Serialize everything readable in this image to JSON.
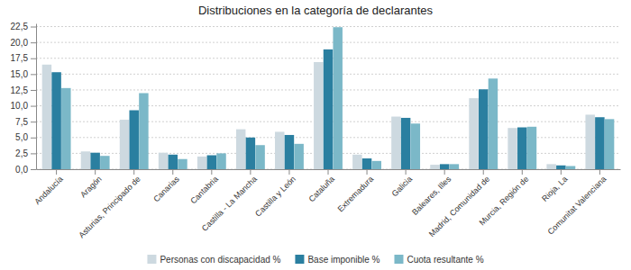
{
  "chart_data": {
    "type": "bar",
    "title": "Distribuciones en la categoría de declarantes",
    "categories": [
      "Andalucía",
      "Aragón",
      "Asturias, Principado de",
      "Canarias",
      "Cantabria",
      "Castilla - La Mancha",
      "Castilla y León",
      "Cataluña",
      "Extremadura",
      "Galicia",
      "Baleares, Illes",
      "Madrid, Comunidad de",
      "Murcia, Región de",
      "Rioja, La",
      "Comunitat Valenciana"
    ],
    "series": [
      {
        "name": "Personas con discapacidad %",
        "color": "#cdd9e0",
        "values": [
          16.5,
          2.8,
          7.8,
          2.6,
          2.0,
          6.3,
          5.9,
          16.9,
          2.3,
          8.3,
          0.7,
          11.2,
          6.5,
          0.8,
          8.6
        ]
      },
      {
        "name": "Base imponible %",
        "color": "#2a7fa0",
        "values": [
          15.3,
          2.6,
          9.3,
          2.3,
          2.2,
          5.0,
          5.4,
          18.9,
          1.7,
          8.1,
          0.8,
          12.6,
          6.6,
          0.6,
          8.2
        ]
      },
      {
        "name": "Cuota resultante %",
        "color": "#7bb8c8",
        "values": [
          12.8,
          2.1,
          12.0,
          1.6,
          2.5,
          3.8,
          4.0,
          22.4,
          1.3,
          7.2,
          0.8,
          14.3,
          6.7,
          0.5,
          7.9
        ]
      }
    ],
    "ylim": [
      0,
      23.0
    ],
    "yticks": [
      {
        "value": 0.0,
        "label": "0,0"
      },
      {
        "value": 2.5,
        "label": "2,5"
      },
      {
        "value": 5.0,
        "label": "5,0"
      },
      {
        "value": 7.5,
        "label": "7,5"
      },
      {
        "value": 10.0,
        "label": "10,0"
      },
      {
        "value": 12.5,
        "label": "12,5"
      },
      {
        "value": 15.0,
        "label": "15,0"
      },
      {
        "value": 17.5,
        "label": "17,5"
      },
      {
        "value": 20.0,
        "label": "20,0"
      },
      {
        "value": 22.5,
        "label": "22,5"
      }
    ],
    "grid": true,
    "legend": "bottom"
  }
}
